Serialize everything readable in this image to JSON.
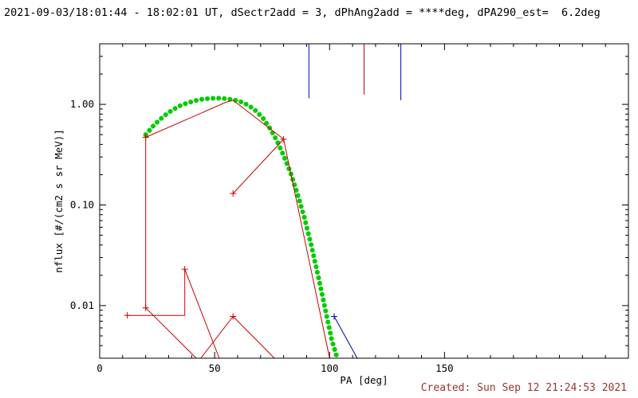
{
  "colors": {
    "background": "#ffffff",
    "axis": "#000000",
    "fit_green": "#00cc00",
    "data_red": "#cc0000",
    "data_blue": "#0000bb",
    "created_text": "#993333"
  },
  "figure": {
    "created_note": "Created: Sun Sep 12 21:24:53 2021"
  },
  "chart_data": {
    "type": "line",
    "title": "2021-09-03/18:01:44 - 18:02:01 UT, dSectr2add = 3, dPhAng2add = ****deg, dPA290_est=  6.2deg",
    "xlabel": "PA [deg]",
    "ylabel": "nflux [#/(cm2 s sr MeV)]",
    "x_scale": "linear",
    "y_scale": "log",
    "xlim": [
      0,
      230
    ],
    "ylim": [
      0.003,
      4.0
    ],
    "x_ticks": {
      "major": [
        0,
        50,
        100,
        150
      ],
      "labels": [
        "0",
        "50",
        "100",
        "150"
      ],
      "minor_step": 10
    },
    "y_ticks": {
      "major": [
        0.01,
        0.1,
        1.0
      ],
      "labels": [
        "0.01",
        "0.10",
        "1.00"
      ]
    },
    "grid": false,
    "legend": false,
    "series": [
      {
        "name": "fit-curve-green",
        "color": "#00cc00",
        "style": "thick-dotted",
        "points": [
          [
            20,
            0.5
          ],
          [
            23,
            0.6
          ],
          [
            26,
            0.7
          ],
          [
            29,
            0.8
          ],
          [
            32,
            0.89
          ],
          [
            35,
            0.97
          ],
          [
            38,
            1.03
          ],
          [
            41,
            1.08
          ],
          [
            44,
            1.12
          ],
          [
            47,
            1.14
          ],
          [
            50,
            1.15
          ],
          [
            53,
            1.15
          ],
          [
            56,
            1.13
          ],
          [
            59,
            1.1
          ],
          [
            62,
            1.05
          ],
          [
            65,
            0.97
          ],
          [
            68,
            0.86
          ],
          [
            71,
            0.73
          ],
          [
            74,
            0.58
          ],
          [
            77,
            0.44
          ],
          [
            80,
            0.31
          ],
          [
            83,
            0.21
          ],
          [
            86,
            0.13
          ],
          [
            89,
            0.075
          ],
          [
            92,
            0.04
          ],
          [
            95,
            0.02
          ],
          [
            98,
            0.0095
          ],
          [
            101,
            0.0045
          ],
          [
            103,
            0.0032
          ]
        ],
        "markers": []
      },
      {
        "name": "red-trace-main",
        "color": "#cc0000",
        "style": "solid",
        "points": [
          [
            20,
            0.47
          ],
          [
            55,
            1.05
          ],
          [
            58,
            1.1
          ],
          [
            80,
            0.45
          ],
          [
            100,
            0.003
          ]
        ],
        "markers": [
          [
            20,
            0.47
          ],
          [
            80,
            0.45
          ]
        ]
      },
      {
        "name": "red-trace-vertical",
        "color": "#cc0000",
        "style": "solid",
        "points": [
          [
            20,
            0.47
          ],
          [
            20,
            0.0095
          ],
          [
            42,
            0.003
          ]
        ],
        "markers": [
          [
            20,
            0.0095
          ]
        ]
      },
      {
        "name": "red-trace-low-left",
        "color": "#cc0000",
        "style": "solid",
        "points": [
          [
            12,
            0.008
          ],
          [
            37,
            0.008
          ],
          [
            37,
            0.023
          ],
          [
            52,
            0.003
          ]
        ],
        "markers": [
          [
            12,
            0.008
          ],
          [
            37,
            0.023
          ]
        ]
      },
      {
        "name": "red-trace-low-mid",
        "color": "#cc0000",
        "style": "solid",
        "points": [
          [
            44,
            0.003
          ],
          [
            58,
            0.0078
          ],
          [
            76,
            0.003
          ]
        ],
        "markers": [
          [
            58,
            0.0078
          ]
        ]
      },
      {
        "name": "red-trace-rise",
        "color": "#cc0000",
        "style": "solid",
        "points": [
          [
            58,
            0.13
          ],
          [
            80,
            0.45
          ]
        ],
        "markers": [
          [
            58,
            0.13
          ]
        ]
      },
      {
        "name": "blue-trace-low",
        "color": "#0000bb",
        "style": "solid",
        "points": [
          [
            102,
            0.0078
          ],
          [
            112,
            0.003
          ]
        ],
        "markers": [
          [
            102,
            0.0078
          ]
        ]
      }
    ],
    "vlines": [
      {
        "x": 91,
        "y_top": 4.0,
        "y_bottom": 1.15,
        "color": "#0000bb",
        "name": "blue-vline-91"
      },
      {
        "x": 115,
        "y_top": 4.0,
        "y_bottom": 1.25,
        "color": "#cc0000",
        "name": "red-vline-115"
      },
      {
        "x": 131,
        "y_top": 4.0,
        "y_bottom": 1.1,
        "color": "#0000bb",
        "name": "blue-vline-131"
      }
    ]
  }
}
